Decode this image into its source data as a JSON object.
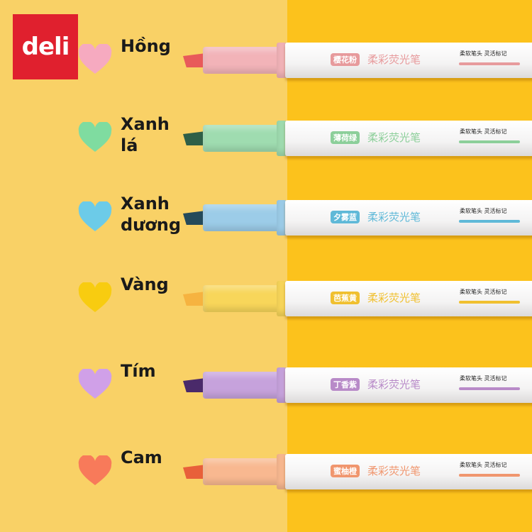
{
  "logo": "deli",
  "colors": {
    "background_left": "#f9d166",
    "background_right": "#fcc21c",
    "logo": "#e0202e"
  },
  "pens": [
    {
      "label": "Hồng",
      "tag": "樱花粉",
      "brand": "柔彩荧光笔",
      "slogan": "柔软笔头 灵活标记",
      "color": "#f2b3b8",
      "tip": "#e85a5a",
      "text": "#e79a9c"
    },
    {
      "label": "Xanh lá",
      "tag": "薄荷绿",
      "brand": "柔彩荧光笔",
      "slogan": "柔软笔头 灵活标记",
      "color": "#9fdcb0",
      "tip": "#2f5f47",
      "text": "#8ccf9a"
    },
    {
      "label": "Xanh dương",
      "tag": "夕雾蓝",
      "brand": "柔彩荧光笔",
      "slogan": "柔软笔头 灵活标记",
      "color": "#9ccce8",
      "tip": "#254a5a",
      "text": "#5fb9d8"
    },
    {
      "label": "Vàng",
      "tag": "芭蕉黄",
      "brand": "柔彩荧光笔",
      "slogan": "柔软笔头 灵活标记",
      "color": "#f8d65a",
      "tip": "#f6b340",
      "text": "#f0c030"
    },
    {
      "label": "Tím",
      "tag": "丁香紫",
      "brand": "柔彩荧光笔",
      "slogan": "柔软笔头 灵活标记",
      "color": "#c6a2dc",
      "tip": "#4a2a6a",
      "text": "#b88ac8"
    },
    {
      "label": "Cam",
      "tag": "蜜柚橙",
      "brand": "柔彩荧光笔",
      "slogan": "柔软笔头 灵活标记",
      "color": "#f8b890",
      "tip": "#e8603a",
      "text": "#f0966e"
    }
  ],
  "heart_colors": [
    "#f6aac0",
    "#7fdca0",
    "#6ccbe8",
    "#f8cc10",
    "#d0a0e8",
    "#f87a5a"
  ]
}
